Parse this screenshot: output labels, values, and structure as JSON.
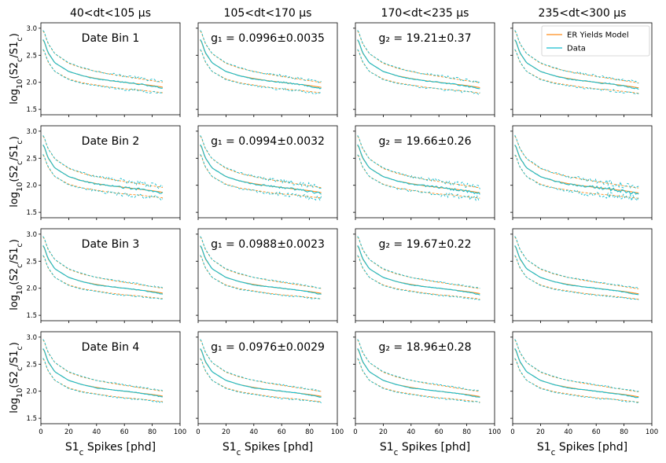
{
  "chart_data": {
    "type": "line",
    "columns": [
      "40<dt<105 μs",
      "105<dt<170 μs",
      "170<dt<235 μs",
      "235<dt<300 μs"
    ],
    "rows": [
      {
        "label": "Date Bin 1",
        "g1": "g₁ = 0.0996±0.0035",
        "g2": "g₂ = 19.21±0.37"
      },
      {
        "label": "Date Bin 2",
        "g1": "g₁ = 0.0994±0.0032",
        "g2": "g₂ = 19.66±0.26"
      },
      {
        "label": "Date Bin 3",
        "g1": "g₁ = 0.0988±0.0023",
        "g2": "g₂ = 19.67±0.22"
      },
      {
        "label": "Date Bin 4",
        "g1": "g₁ = 0.0976±0.0029",
        "g2": "g₂ = 18.96±0.28"
      }
    ],
    "xlabel": "S1_c Spikes [phd]",
    "ylabel": "log10(S2_c/S1_c)",
    "xlim": [
      0,
      100
    ],
    "ylim": [
      1.4,
      3.1
    ],
    "xticks": [
      0,
      20,
      40,
      60,
      80,
      100
    ],
    "yticks": [
      1.5,
      2.0,
      2.5,
      3.0
    ],
    "legend": {
      "position": "top-right",
      "entries": [
        "ER Yields Model",
        "Data"
      ]
    },
    "colors": {
      "model": "#ff8c1a",
      "data": "#17becf"
    },
    "series": [
      {
        "name": "ER Yields Model",
        "style": "median (solid) with ±1σ band (dashed)",
        "x": [
          2,
          5,
          10,
          20,
          30,
          40,
          50,
          60,
          70,
          80,
          90
        ],
        "median": [
          2.78,
          2.55,
          2.36,
          2.2,
          2.12,
          2.07,
          2.03,
          2.0,
          1.97,
          1.94,
          1.9
        ],
        "upper": [
          2.95,
          2.72,
          2.53,
          2.35,
          2.26,
          2.2,
          2.15,
          2.11,
          2.07,
          2.03,
          1.99
        ],
        "lower": [
          2.6,
          2.38,
          2.2,
          2.06,
          1.99,
          1.95,
          1.91,
          1.88,
          1.86,
          1.83,
          1.8
        ]
      },
      {
        "name": "Data",
        "style": "median (solid) with ±1σ band (dashed)",
        "x": [
          2,
          5,
          10,
          20,
          30,
          40,
          50,
          60,
          70,
          80,
          90
        ],
        "median": [
          2.79,
          2.56,
          2.36,
          2.2,
          2.12,
          2.06,
          2.03,
          2.0,
          1.97,
          1.93,
          1.88
        ],
        "upper": [
          2.96,
          2.73,
          2.53,
          2.36,
          2.27,
          2.2,
          2.16,
          2.12,
          2.08,
          2.04,
          2.0
        ],
        "lower": [
          2.61,
          2.39,
          2.2,
          2.05,
          1.98,
          1.94,
          1.9,
          1.87,
          1.85,
          1.82,
          1.79
        ]
      }
    ]
  }
}
